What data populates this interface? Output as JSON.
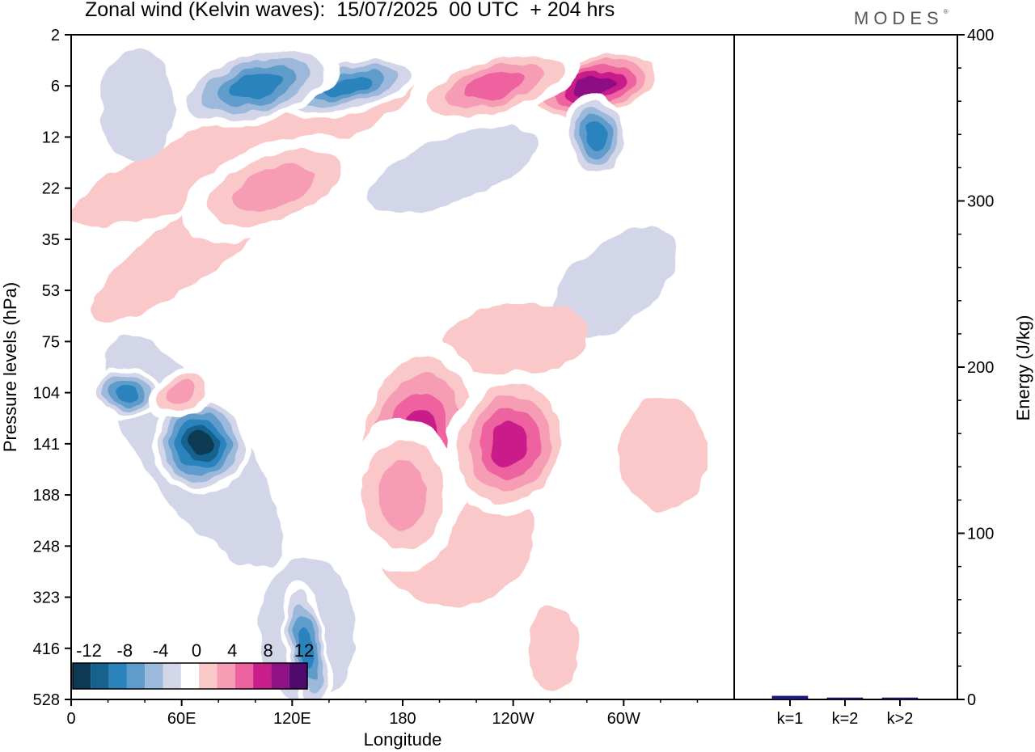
{
  "title": "Zonal wind (Kelvin waves):  15/07/2025  00 UTC  + 204 hrs",
  "brand": "MODES",
  "brand_mark": "®",
  "chart_data": [
    {
      "type": "heatmap",
      "title": "Zonal wind (Kelvin waves):  15/07/2025  00 UTC  + 204 hrs",
      "xlabel": "Longitude",
      "ylabel": "Pressure levels (hPa)",
      "x_ticks": [
        "0",
        "60E",
        "120E",
        "180",
        "120W",
        "60W"
      ],
      "x_tick_values": [
        0,
        60,
        120,
        180,
        240,
        300
      ],
      "xlim": [
        0,
        360
      ],
      "y_ticks": [
        "2",
        "6",
        "12",
        "22",
        "35",
        "53",
        "75",
        "104",
        "141",
        "188",
        "248",
        "323",
        "416",
        "528"
      ],
      "colorbar": {
        "labels": [
          "-12",
          "-8",
          "-4",
          "0",
          "4",
          "8",
          "12"
        ],
        "levels": [
          -14,
          -12,
          -10,
          -8,
          -6,
          -4,
          -2,
          2,
          4,
          6,
          8,
          10,
          12,
          14
        ],
        "colors": [
          "#0b3a52",
          "#16628e",
          "#2b83bd",
          "#5f9ccc",
          "#9cb8da",
          "#d3d5e8",
          "#ffffff",
          "#fac8c8",
          "#f79cb5",
          "#ee62a0",
          "#c91e8a",
          "#8f1184",
          "#4f0a6e"
        ]
      },
      "features": [
        {
          "sign": "neg",
          "peak": -14,
          "lon": 70,
          "level": 141
        },
        {
          "sign": "neg",
          "peak": -10,
          "lon": 30,
          "level": 104
        },
        {
          "sign": "neg",
          "peak": -10,
          "lon": 128,
          "level": 416
        },
        {
          "sign": "pos",
          "peak": 6,
          "lon": 60,
          "level": 104
        },
        {
          "sign": "pos",
          "peak": 10,
          "lon": 188,
          "level": 141
        },
        {
          "sign": "pos",
          "peak": 10,
          "lon": 238,
          "level": 141
        },
        {
          "sign": "pos",
          "peak": 6,
          "lon": 180,
          "level": 188
        },
        {
          "sign": "pos",
          "peak": 4,
          "lon": 262,
          "level": 416
        },
        {
          "sign": "pos",
          "peak": 12,
          "lon": 284,
          "level": 6
        },
        {
          "sign": "pos",
          "peak": 8,
          "lon": 230,
          "level": 6
        },
        {
          "sign": "neg",
          "peak": -10,
          "lon": 150,
          "level": 6
        },
        {
          "sign": "neg",
          "peak": -10,
          "lon": 100,
          "level": 6
        },
        {
          "sign": "neg",
          "peak": -10,
          "lon": 285,
          "level": 12
        },
        {
          "sign": "pos",
          "peak": 6,
          "lon": 110,
          "level": 22
        }
      ]
    },
    {
      "type": "bar",
      "categories": [
        "k=1",
        "k=2",
        "k>2"
      ],
      "values": [
        2.0,
        0.5,
        0.8
      ],
      "ylabel": "Energy (J/kg)",
      "ylim": [
        0,
        400
      ],
      "y_ticks": [
        0,
        100,
        200,
        300,
        400
      ],
      "bar_color": "#1a1a8c"
    }
  ]
}
